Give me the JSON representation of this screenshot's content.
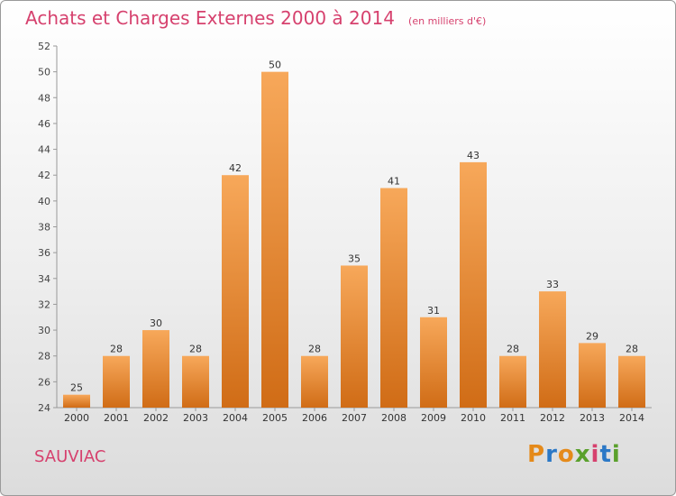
{
  "title": "Achats et Charges Externes 2000 à 2014",
  "subtitle": "(en milliers d'€)",
  "commune": "SAUVIAC",
  "logo": {
    "text": "Proxiti",
    "colors": [
      "#e58a1a",
      "#2b78c6",
      "#e58a1a",
      "#5aa02c",
      "#d6416e",
      "#2b78c6",
      "#5aa02c"
    ]
  },
  "colors": {
    "title": "#d6416e",
    "bar_top": "#f7a85a",
    "bar_bottom": "#d06c16",
    "axis": "#999999",
    "grid": "#cccccc"
  },
  "chart_data": {
    "type": "bar",
    "title": "Achats et Charges Externes 2000 à 2014",
    "subtitle": "(en milliers d'€)",
    "categories": [
      "2000",
      "2001",
      "2002",
      "2003",
      "2004",
      "2005",
      "2006",
      "2007",
      "2008",
      "2009",
      "2010",
      "2011",
      "2012",
      "2013",
      "2014"
    ],
    "values": [
      25,
      28,
      30,
      28,
      42,
      50,
      28,
      35,
      41,
      31,
      43,
      28,
      33,
      29,
      28
    ],
    "ylim": [
      24,
      52
    ],
    "yticks": [
      24,
      26,
      28,
      30,
      32,
      34,
      36,
      38,
      40,
      42,
      44,
      46,
      48,
      50,
      52
    ],
    "grid": false,
    "legend": "none"
  }
}
